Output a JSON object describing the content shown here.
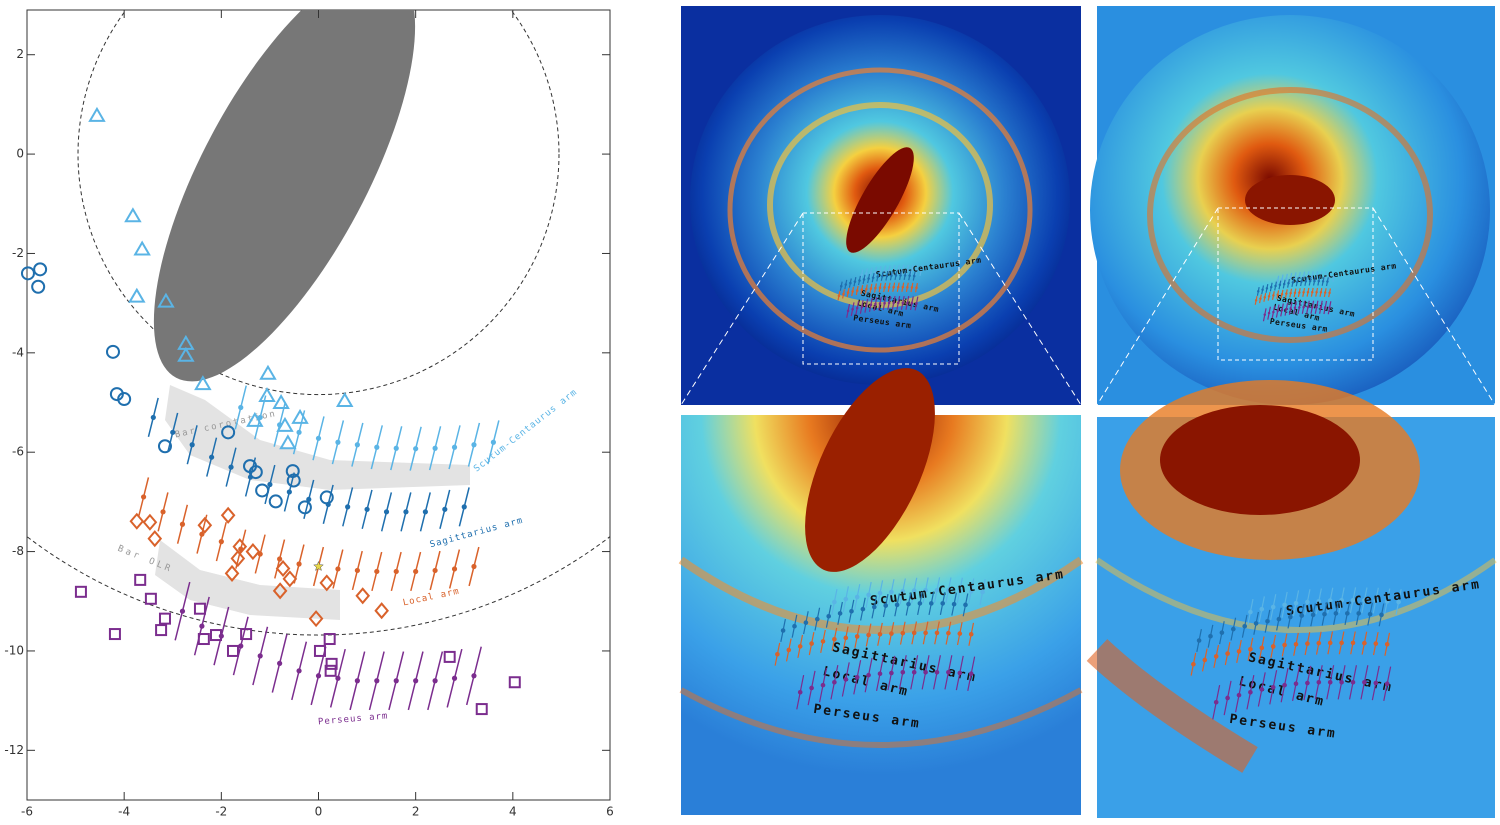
{
  "chart_data": {
    "type": "scatter",
    "xlim": [
      -6,
      6
    ],
    "ylim": [
      -13,
      2.9
    ],
    "xticks": [
      -6,
      -4,
      -2,
      0,
      2,
      4,
      6
    ],
    "yticks": [
      2,
      0,
      -2,
      -4,
      -6,
      -8,
      -10,
      -12
    ],
    "series": [
      {
        "name": "Scutum-Centaurus arm",
        "color": "#5ab4e5",
        "yerr": 0.45,
        "x": [
          -1.6,
          -1.2,
          -0.8,
          -0.4,
          0,
          0.4,
          0.8,
          1.2,
          1.6,
          2.0,
          2.4,
          2.8,
          3.2,
          3.6
        ],
        "y": [
          -5.1,
          -5.3,
          -5.45,
          -5.6,
          -5.72,
          -5.8,
          -5.85,
          -5.9,
          -5.92,
          -5.93,
          -5.92,
          -5.9,
          -5.85,
          -5.8
        ]
      },
      {
        "name": "Sagittarius arm",
        "color": "#1f6fae",
        "yerr": 0.4,
        "x": [
          -3.4,
          -3.0,
          -2.6,
          -2.2,
          -1.8,
          -1.4,
          -1.0,
          -0.6,
          -0.2,
          0.2,
          0.6,
          1.0,
          1.4,
          1.8,
          2.2,
          2.6,
          3.0
        ],
        "y": [
          -5.3,
          -5.6,
          -5.85,
          -6.1,
          -6.3,
          -6.5,
          -6.65,
          -6.8,
          -6.95,
          -7.05,
          -7.1,
          -7.15,
          -7.2,
          -7.2,
          -7.2,
          -7.15,
          -7.1
        ]
      },
      {
        "name": "Local arm",
        "color": "#d9622b",
        "yerr": 0.4,
        "x": [
          -3.6,
          -3.2,
          -2.8,
          -2.4,
          -2.0,
          -1.6,
          -1.2,
          -0.8,
          -0.4,
          0,
          0.4,
          0.8,
          1.2,
          1.6,
          2.0,
          2.4,
          2.8,
          3.2
        ],
        "y": [
          -6.9,
          -7.2,
          -7.45,
          -7.65,
          -7.8,
          -7.95,
          -8.05,
          -8.15,
          -8.25,
          -8.3,
          -8.35,
          -8.38,
          -8.4,
          -8.4,
          -8.4,
          -8.38,
          -8.35,
          -8.3
        ]
      },
      {
        "name": "Perseus arm",
        "color": "#7b2d8e",
        "yerr": 0.6,
        "x": [
          -2.8,
          -2.4,
          -2.0,
          -1.6,
          -1.2,
          -0.8,
          -0.4,
          0,
          0.4,
          0.8,
          1.2,
          1.6,
          2.0,
          2.4,
          2.8,
          3.2
        ],
        "y": [
          -9.2,
          -9.5,
          -9.7,
          -9.9,
          -10.1,
          -10.25,
          -10.4,
          -10.5,
          -10.55,
          -10.6,
          -10.6,
          -10.6,
          -10.6,
          -10.6,
          -10.55,
          -10.5
        ]
      }
    ],
    "markers": [
      {
        "shape": "triangle",
        "color": "#5ab4e5",
        "x": [
          -4.56,
          -3.82,
          -3.63,
          -3.74,
          -3.14,
          -2.73,
          -2.73,
          -2.38,
          -1.04,
          -1.06,
          -0.77,
          0.54,
          -0.69,
          -0.38,
          -0.63,
          -1.31
        ],
        "y": [
          0.77,
          -1.25,
          -1.92,
          -2.87,
          -2.97,
          -3.82,
          -4.06,
          -4.63,
          -4.42,
          -4.87,
          -5.01,
          -4.97,
          -5.47,
          -5.31,
          -5.82,
          -5.37
        ]
      },
      {
        "shape": "circle",
        "color": "#1f6fae",
        "x": [
          -5.98,
          -5.73,
          -5.77,
          -4.23,
          -4.15,
          -4.0,
          -3.16,
          -1.86,
          -1.41,
          -1.29,
          -1.16,
          -0.88,
          -0.53,
          -0.51,
          -0.28,
          0.17
        ],
        "y": [
          -2.4,
          -2.32,
          -2.67,
          -3.98,
          -4.83,
          -4.93,
          -5.88,
          -5.6,
          -6.28,
          -6.4,
          -6.77,
          -6.99,
          -6.38,
          -6.57,
          -7.11,
          -6.91
        ]
      },
      {
        "shape": "diamond",
        "color": "#d9622b",
        "x": [
          -3.74,
          -3.47,
          -3.37,
          -2.34,
          -1.86,
          -1.62,
          -1.35,
          -1.66,
          -1.78,
          -0.73,
          -0.79,
          -0.59,
          0.17,
          0.91,
          1.3,
          -0.05
        ],
        "y": [
          -7.39,
          -7.41,
          -7.74,
          -7.47,
          -7.27,
          -7.9,
          -8.0,
          -8.14,
          -8.44,
          -8.34,
          -8.79,
          -8.55,
          -8.63,
          -8.89,
          -9.19,
          -9.35
        ]
      },
      {
        "shape": "square",
        "color": "#7b2d8e",
        "x": [
          -4.89,
          -3.67,
          -3.45,
          -3.24,
          -3.16,
          -4.19,
          -2.44,
          -2.36,
          -2.11,
          -1.76,
          -1.49,
          0.23,
          0.03,
          0.27,
          0.25,
          2.7,
          4.04,
          3.36
        ],
        "y": [
          -8.81,
          -8.57,
          -8.95,
          -9.58,
          -9.35,
          -9.66,
          -9.15,
          -9.76,
          -9.68,
          -10.0,
          -9.66,
          -9.76,
          -10.0,
          -10.26,
          -10.4,
          -10.12,
          -10.63,
          -11.17
        ]
      }
    ],
    "sun": {
      "x": 0,
      "y": -8.3,
      "color": "#e8d84a"
    },
    "annotations": [
      "Bar corotation",
      "Bar OLR"
    ]
  }
}
